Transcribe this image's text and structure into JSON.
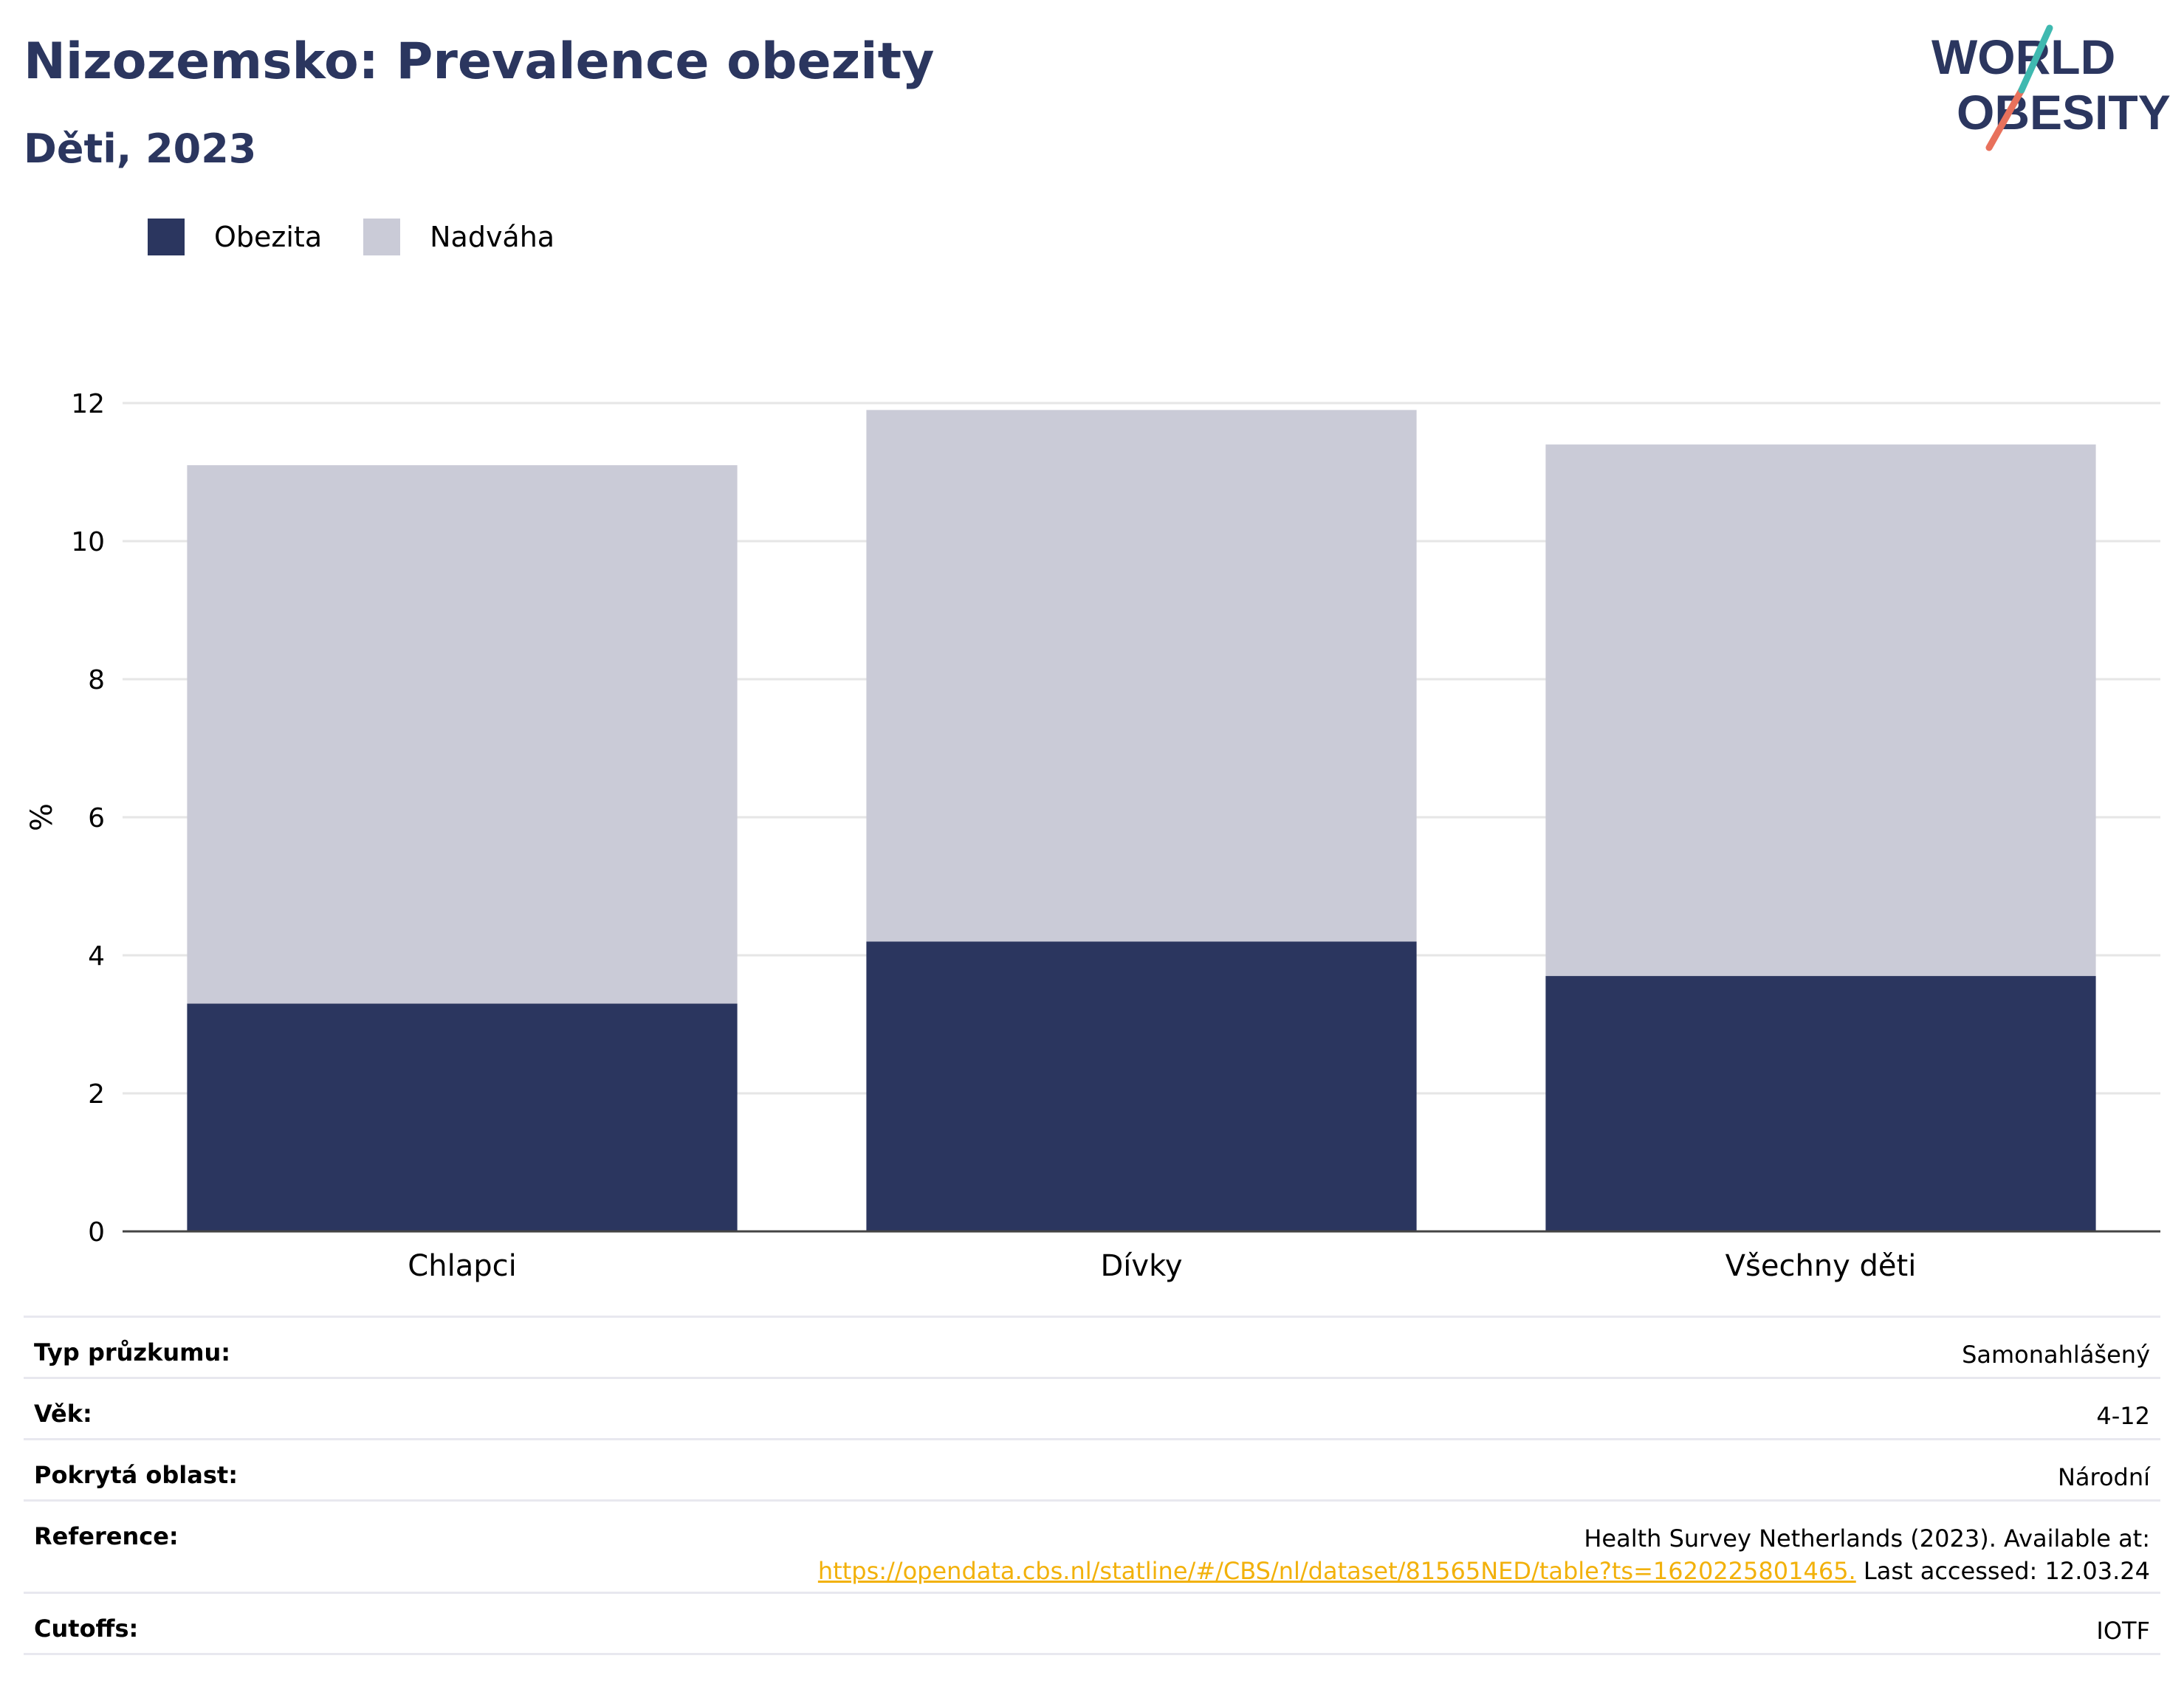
{
  "header": {
    "title": "Nizozemsko: Prevalence obezity",
    "subtitle": "Děti, 2023"
  },
  "logo": {
    "line1": "WORLD",
    "line2": "OBESITY"
  },
  "legend": {
    "items": [
      {
        "label": "Obezita",
        "color": "#2b365f"
      },
      {
        "label": "Nadváha",
        "color": "#cacbd7"
      }
    ]
  },
  "chart_data": {
    "type": "bar",
    "stacked": true,
    "categories": [
      "Chlapci",
      "Dívky",
      "Všechny děti"
    ],
    "series": [
      {
        "name": "Obezita",
        "values": [
          3.3,
          4.2,
          3.7
        ],
        "color": "#2b365f"
      },
      {
        "name": "Nadváha",
        "values": [
          7.8,
          7.7,
          7.7
        ],
        "color": "#cacbd7"
      }
    ],
    "ylabel": "%",
    "ylim": [
      0,
      12
    ],
    "yticks": [
      0,
      2,
      4,
      6,
      8,
      10,
      12
    ],
    "grid": true,
    "legend_position": "top-left"
  },
  "meta": {
    "survey_type": {
      "label": "Typ průzkumu:",
      "value": "Samonahlášený"
    },
    "age": {
      "label": "Věk:",
      "value": "4-12"
    },
    "coverage": {
      "label": "Pokrytá oblast:",
      "value": "Národní"
    },
    "reference": {
      "label": "Reference:",
      "text1": "Health Survey Netherlands (2023). Available at:",
      "link": "https://opendata.cbs.nl/statline/#/CBS/nl/dataset/81565NED/table?ts=1620225801465.",
      "text2": " Last accessed: 12.03.24"
    },
    "cutoffs": {
      "label": "Cutoffs:",
      "value": "IOTF"
    }
  }
}
